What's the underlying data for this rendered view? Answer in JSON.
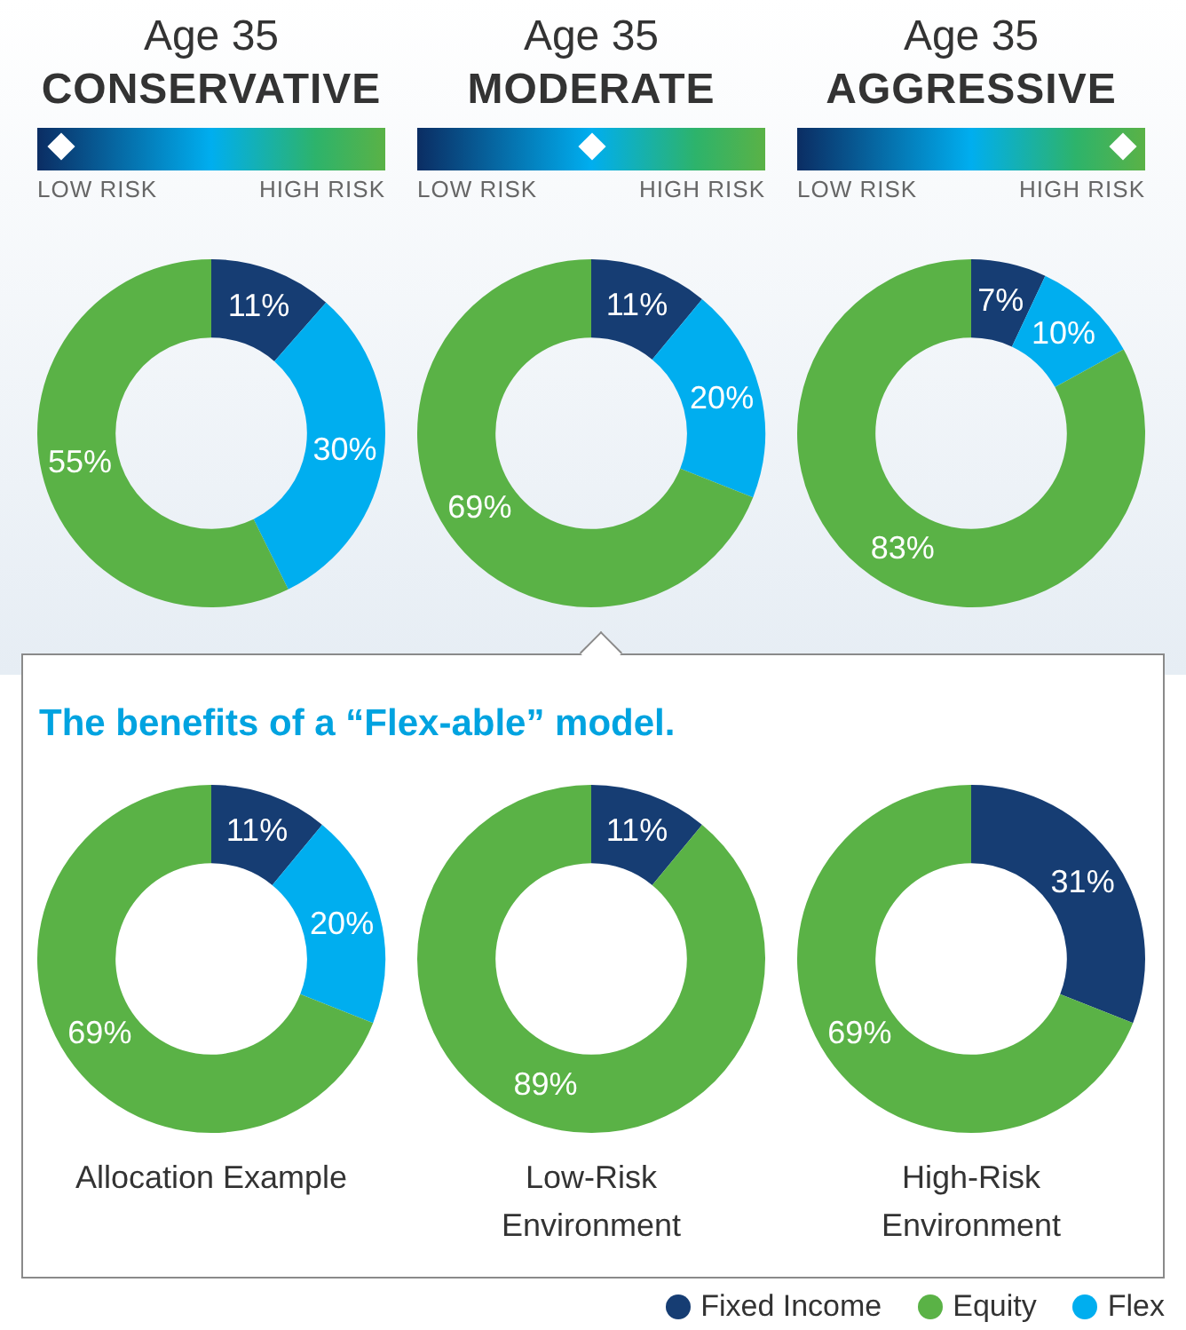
{
  "chart_data": [
    {
      "type": "donut",
      "title": "Age 35",
      "subtitle": "CONSERVATIVE",
      "annotations": [
        "LOW RISK",
        "HIGH RISK"
      ],
      "categories": [
        null,
        null,
        null
      ],
      "values": [
        11,
        55,
        30
      ],
      "colors": [
        "#163d73",
        "#5ab246",
        "#00aeef"
      ],
      "value_labels": [
        "11%",
        "55%",
        "30%"
      ]
    },
    {
      "type": "donut",
      "title": "Age 35",
      "subtitle": "MODERATE",
      "annotations": [
        "LOW RISK",
        "HIGH RISK"
      ],
      "categories": [
        null,
        null,
        null
      ],
      "values": [
        11,
        69,
        20
      ],
      "colors": [
        "#163d73",
        "#5ab246",
        "#00aeef"
      ],
      "value_labels": [
        "11%",
        "69%",
        "20%"
      ]
    },
    {
      "type": "donut",
      "title": "Age 35",
      "subtitle": "AGGRESSIVE",
      "annotations": [
        "LOW RISK",
        "HIGH RISK"
      ],
      "categories": [
        null,
        null,
        null
      ],
      "values": [
        7,
        83,
        10
      ],
      "colors": [
        "#163d73",
        "#5ab246",
        "#00aeef"
      ],
      "value_labels": [
        "7%",
        "83%",
        "10%"
      ]
    },
    {
      "type": "donut",
      "annotations": [
        "The benefits of a “Flex-able” model."
      ],
      "xlabel": "Allocation Example",
      "categories": [
        null,
        null,
        null
      ],
      "values": [
        11,
        69,
        20
      ],
      "colors": [
        "#163d73",
        "#5ab246",
        "#00aeef"
      ],
      "value_labels": [
        "11%",
        "69%",
        "20%"
      ]
    },
    {
      "type": "donut",
      "xlabel": "Low-Risk Environment",
      "categories": [
        null,
        null,
        null
      ],
      "values": [
        11,
        89,
        0
      ],
      "colors": [
        "#163d73",
        "#5ab246",
        "#00aeef"
      ],
      "value_labels": [
        "11%",
        "89%",
        null
      ]
    },
    {
      "type": "donut",
      "xlabel": "High-Risk Environment",
      "legend": "bottom left",
      "categories": [
        "Fixed Income",
        "Equity",
        "Flex"
      ],
      "values": [
        31,
        69,
        0
      ],
      "colors": [
        "#163d73",
        "#5ab246",
        "#00aeef"
      ],
      "value_labels": [
        "31%",
        "69%",
        null
      ]
    }
  ]
}
